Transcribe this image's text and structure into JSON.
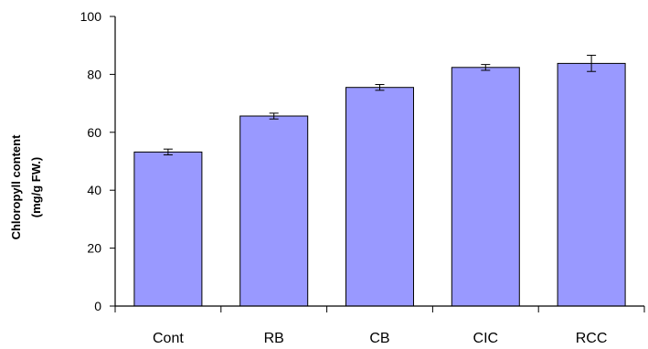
{
  "chart_data": {
    "type": "bar",
    "title": "",
    "xlabel": "",
    "ylabel_lines": [
      "Chloropyll content",
      "(mg/g FW.)"
    ],
    "categories": [
      "Cont",
      "RB",
      "CB",
      "CIC",
      "RCC"
    ],
    "values": [
      53.2,
      65.6,
      75.5,
      82.4,
      83.8
    ],
    "errors": [
      1.0,
      1.0,
      1.0,
      1.0,
      2.8
    ],
    "ylim": [
      0,
      100
    ],
    "yticks": [
      0,
      20,
      40,
      60,
      80,
      100
    ],
    "ytick_labels": [
      "0",
      "20",
      "40",
      "60",
      "80",
      "100"
    ],
    "grid": false,
    "legend": "none",
    "bar_color": "#9999ff",
    "bar_edge_color": "#000000"
  }
}
